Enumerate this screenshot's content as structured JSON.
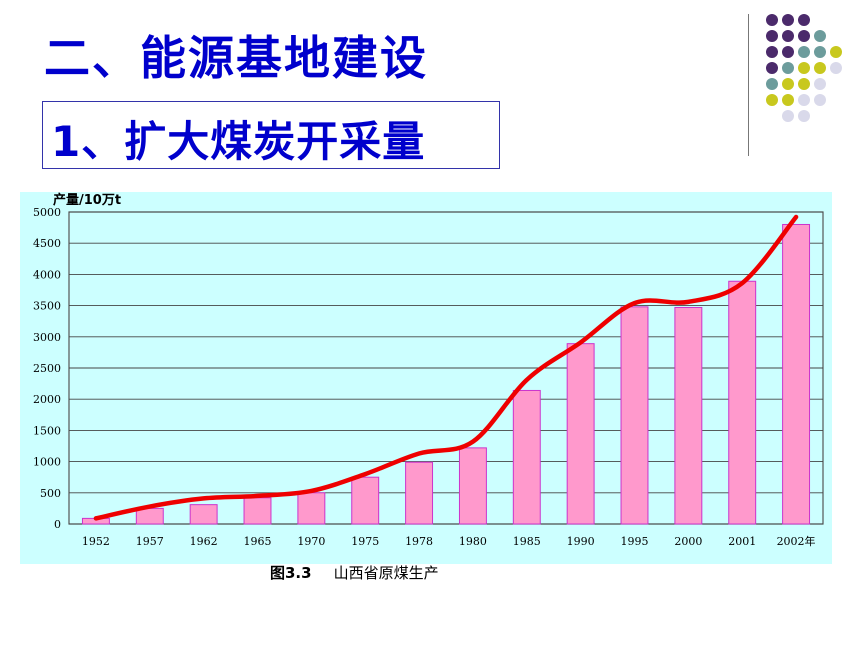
{
  "slide": {
    "title": "二、能源基地建设",
    "subtitle": "1、扩大煤炭开采量",
    "caption_fig": "图3.3",
    "caption_text": "山西省原煤生产"
  },
  "colors": {
    "title": "#0000cc",
    "bar_fill": "#ff99cc",
    "bar_stroke": "#cc33cc",
    "trend_line": "#ee0000",
    "plot_background": "#ccffff",
    "dot_purple": "#4b2a6b",
    "dot_teal": "#6c9c9c",
    "dot_yellow": "#c8c81e",
    "dot_lavender": "#d9d9ea"
  },
  "chart_data": {
    "type": "bar",
    "ylabel": "产量/10万t",
    "categories": [
      "1952",
      "1957",
      "1962",
      "1965",
      "1970",
      "1975",
      "1978",
      "1980",
      "1985",
      "1990",
      "1995",
      "2000",
      "2001",
      "2002年"
    ],
    "values": [
      90,
      250,
      310,
      420,
      500,
      750,
      990,
      1220,
      2140,
      2890,
      3480,
      3470,
      3890,
      4800
    ],
    "trend": [
      90,
      280,
      410,
      450,
      530,
      800,
      1130,
      1320,
      2310,
      2910,
      3540,
      3560,
      3860,
      4920
    ],
    "ylim": [
      0,
      5000
    ],
    "yticks": [
      0,
      500,
      1000,
      1500,
      2000,
      2500,
      3000,
      3500,
      4000,
      4500,
      5000
    ],
    "grid": true,
    "legend": "none"
  }
}
